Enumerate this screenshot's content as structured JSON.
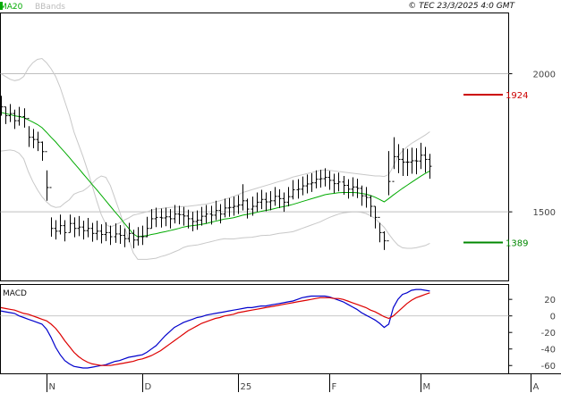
{
  "header": {
    "legend": [
      {
        "label": "MA20",
        "color": "#00aa00"
      },
      {
        "label": "BBands",
        "color": "#bbbbbb"
      }
    ],
    "copyright": "© TEC 23/3/2025 4:0 GMT"
  },
  "macd_panel": {
    "label": "MACD"
  },
  "chart_data": [
    {
      "type": "ohlc",
      "y_axis_side": "right",
      "ylim": [
        1250,
        2220
      ],
      "yticks": [
        {
          "value": 1500,
          "label": "1500"
        },
        {
          "value": 2000,
          "label": "2000"
        }
      ],
      "x_axis": {
        "index_range": [
          0,
          96
        ],
        "month_ticks": [
          {
            "index": 10,
            "label": "N"
          },
          {
            "index": 31,
            "label": "D"
          },
          {
            "index": 52,
            "label": "25"
          },
          {
            "index": 72,
            "label": "F"
          },
          {
            "index": 92,
            "label": "M"
          },
          {
            "index": 116,
            "label": "A"
          }
        ]
      },
      "levels": [
        {
          "value": 1924,
          "label": "1924",
          "color": "#cc0000"
        },
        {
          "value": 1389,
          "label": "1389",
          "color": "#008800"
        }
      ],
      "close": [
        1880,
        1848,
        1856,
        1830,
        1845,
        1838,
        1770,
        1762,
        1752,
        1718,
        1588,
        1440,
        1430,
        1450,
        1425,
        1458,
        1440,
        1445,
        1432,
        1440,
        1422,
        1430,
        1418,
        1425,
        1410,
        1420,
        1415,
        1403,
        1422,
        1398,
        1410,
        1410,
        1440,
        1475,
        1480,
        1478,
        1482,
        1475,
        1492,
        1490,
        1485,
        1475,
        1465,
        1470,
        1484,
        1492,
        1488,
        1505,
        1492,
        1514,
        1516,
        1520,
        1525,
        1540,
        1510,
        1520,
        1535,
        1545,
        1536,
        1540,
        1556,
        1548,
        1535,
        1555,
        1580,
        1582,
        1594,
        1601,
        1605,
        1618,
        1620,
        1625,
        1614,
        1602,
        1608,
        1596,
        1582,
        1590,
        1585,
        1558,
        1552,
        1520,
        1480,
        1425,
        1395,
        1610,
        1700,
        1690,
        1680,
        1680,
        1685,
        1684,
        1705,
        1690,
        1665
      ],
      "high": [
        1920,
        1880,
        1890,
        1870,
        1880,
        1875,
        1810,
        1800,
        1790,
        1755,
        1650,
        1480,
        1470,
        1490,
        1470,
        1490,
        1480,
        1485,
        1468,
        1478,
        1460,
        1468,
        1455,
        1462,
        1450,
        1458,
        1452,
        1440,
        1460,
        1435,
        1445,
        1450,
        1482,
        1510,
        1515,
        1512,
        1515,
        1510,
        1525,
        1522,
        1518,
        1508,
        1500,
        1505,
        1518,
        1525,
        1522,
        1540,
        1528,
        1548,
        1550,
        1555,
        1560,
        1600,
        1548,
        1555,
        1570,
        1580,
        1570,
        1575,
        1590,
        1582,
        1570,
        1590,
        1615,
        1618,
        1628,
        1635,
        1640,
        1650,
        1652,
        1658,
        1648,
        1638,
        1642,
        1630,
        1618,
        1625,
        1620,
        1595,
        1590,
        1560,
        1520,
        1460,
        1430,
        1720,
        1770,
        1745,
        1730,
        1728,
        1732,
        1730,
        1750,
        1735,
        1710
      ],
      "low": [
        1848,
        1818,
        1825,
        1800,
        1812,
        1805,
        1735,
        1730,
        1720,
        1685,
        1540,
        1410,
        1400,
        1418,
        1393,
        1425,
        1408,
        1412,
        1400,
        1408,
        1392,
        1398,
        1386,
        1394,
        1380,
        1388,
        1384,
        1372,
        1390,
        1368,
        1378,
        1380,
        1408,
        1440,
        1445,
        1443,
        1448,
        1440,
        1458,
        1455,
        1450,
        1440,
        1430,
        1435,
        1450,
        1458,
        1454,
        1470,
        1458,
        1480,
        1482,
        1486,
        1492,
        1505,
        1476,
        1486,
        1500,
        1510,
        1502,
        1506,
        1522,
        1514,
        1500,
        1520,
        1545,
        1548,
        1560,
        1567,
        1572,
        1585,
        1588,
        1592,
        1580,
        1568,
        1574,
        1562,
        1548,
        1556,
        1550,
        1522,
        1515,
        1482,
        1440,
        1390,
        1362,
        1560,
        1655,
        1640,
        1630,
        1630,
        1638,
        1636,
        1655,
        1642,
        1620
      ],
      "ma20": [
        1860,
        1856,
        1852,
        1848,
        1845,
        1841,
        1833,
        1825,
        1816,
        1805,
        1788,
        1770,
        1753,
        1734,
        1716,
        1697,
        1677,
        1658,
        1638,
        1619,
        1599,
        1580,
        1560,
        1540,
        1520,
        1500,
        1481,
        1460,
        1440,
        1420,
        1410,
        1412,
        1414,
        1418,
        1421,
        1425,
        1428,
        1432,
        1436,
        1440,
        1445,
        1448,
        1450,
        1452,
        1455,
        1458,
        1462,
        1466,
        1470,
        1474,
        1476,
        1479,
        1483,
        1488,
        1491,
        1494,
        1498,
        1502,
        1505,
        1508,
        1512,
        1516,
        1519,
        1523,
        1527,
        1532,
        1537,
        1542,
        1547,
        1552,
        1557,
        1562,
        1565,
        1567,
        1569,
        1570,
        1570,
        1570,
        1569,
        1567,
        1564,
        1559,
        1553,
        1545,
        1536,
        1548,
        1561,
        1573,
        1585,
        1596,
        1607,
        1618,
        1629,
        1639,
        1648
      ],
      "bb_upper": [
        2000,
        1990,
        1980,
        1975,
        1978,
        1990,
        2020,
        2040,
        2052,
        2055,
        2040,
        2018,
        1990,
        1950,
        1900,
        1850,
        1790,
        1745,
        1700,
        1650,
        1595,
        1540,
        1490,
        1455,
        1445,
        1452,
        1460,
        1470,
        1478,
        1488,
        1492,
        1496,
        1500,
        1506,
        1510,
        1512,
        1514,
        1516,
        1517,
        1518,
        1519,
        1520,
        1522,
        1524,
        1526,
        1528,
        1532,
        1536,
        1540,
        1545,
        1550,
        1556,
        1562,
        1570,
        1575,
        1580,
        1585,
        1590,
        1595,
        1600,
        1605,
        1610,
        1614,
        1620,
        1626,
        1630,
        1634,
        1638,
        1642,
        1646,
        1650,
        1652,
        1650,
        1648,
        1646,
        1644,
        1642,
        1640,
        1638,
        1636,
        1634,
        1632,
        1630,
        1630,
        1628,
        1635,
        1665,
        1700,
        1720,
        1735,
        1748,
        1758,
        1768,
        1778,
        1790
      ],
      "bb_lower": [
        1720,
        1722,
        1724,
        1721,
        1712,
        1692,
        1646,
        1610,
        1580,
        1555,
        1536,
        1522,
        1516,
        1518,
        1532,
        1544,
        1564,
        1571,
        1576,
        1588,
        1603,
        1620,
        1630,
        1625,
        1595,
        1548,
        1502,
        1450,
        1402,
        1352,
        1328,
        1328,
        1328,
        1330,
        1332,
        1338,
        1342,
        1348,
        1355,
        1362,
        1371,
        1376,
        1378,
        1380,
        1384,
        1388,
        1392,
        1396,
        1400,
        1403,
        1402,
        1402,
        1404,
        1406,
        1407,
        1408,
        1411,
        1414,
        1415,
        1416,
        1419,
        1422,
        1424,
        1426,
        1428,
        1434,
        1440,
        1446,
        1452,
        1458,
        1464,
        1472,
        1480,
        1486,
        1492,
        1496,
        1498,
        1500,
        1500,
        1498,
        1494,
        1486,
        1476,
        1460,
        1444,
        1420,
        1398,
        1380,
        1370,
        1368,
        1368,
        1370,
        1374,
        1378,
        1386
      ]
    },
    {
      "type": "line",
      "panel": "MACD",
      "y_axis_side": "right",
      "ylim": [
        -70,
        38
      ],
      "yticks": [
        {
          "value": 20,
          "label": "20"
        },
        {
          "value": 0,
          "label": "0"
        },
        {
          "value": -20,
          "label": "-20"
        },
        {
          "value": -40,
          "label": "-40"
        },
        {
          "value": -60,
          "label": "-60"
        }
      ],
      "series": [
        {
          "color": "#0000cc",
          "values": [
            6,
            5,
            4,
            3,
            0,
            -2,
            -4,
            -6,
            -8,
            -10,
            -16,
            -26,
            -38,
            -47,
            -54,
            -58,
            -61,
            -62,
            -63,
            -63,
            -62,
            -61,
            -60,
            -59,
            -57,
            -55,
            -54,
            -52,
            -50,
            -49,
            -48,
            -47,
            -44,
            -40,
            -36,
            -30,
            -24,
            -19,
            -14,
            -11,
            -8,
            -6,
            -4,
            -2,
            -1,
            1,
            2,
            3,
            4,
            5,
            6,
            7,
            8,
            9,
            10,
            10,
            11,
            12,
            12,
            13,
            14,
            15,
            16,
            17,
            18,
            20,
            22,
            23,
            24,
            24,
            24,
            24,
            23,
            21,
            19,
            17,
            14,
            11,
            8,
            4,
            1,
            -2,
            -5,
            -9,
            -14,
            -10,
            10,
            20,
            26,
            28,
            31,
            32,
            32,
            31,
            30
          ]
        },
        {
          "color": "#dd0000",
          "values": [
            10,
            9,
            8,
            7,
            5,
            3,
            2,
            0,
            -2,
            -4,
            -6,
            -10,
            -15,
            -22,
            -30,
            -37,
            -44,
            -49,
            -53,
            -56,
            -58,
            -59,
            -60,
            -60,
            -60,
            -59,
            -58,
            -57,
            -56,
            -55,
            -53,
            -52,
            -50,
            -48,
            -45,
            -42,
            -38,
            -34,
            -30,
            -26,
            -22,
            -18,
            -15,
            -12,
            -9,
            -7,
            -5,
            -3,
            -2,
            0,
            1,
            2,
            4,
            5,
            6,
            7,
            8,
            9,
            10,
            11,
            12,
            13,
            14,
            15,
            16,
            17,
            18,
            19,
            20,
            21,
            22,
            22,
            22,
            21,
            21,
            20,
            18,
            16,
            14,
            12,
            10,
            7,
            5,
            2,
            -1,
            -3,
            0,
            5,
            10,
            15,
            19,
            22,
            24,
            26,
            28
          ]
        }
      ]
    }
  ]
}
